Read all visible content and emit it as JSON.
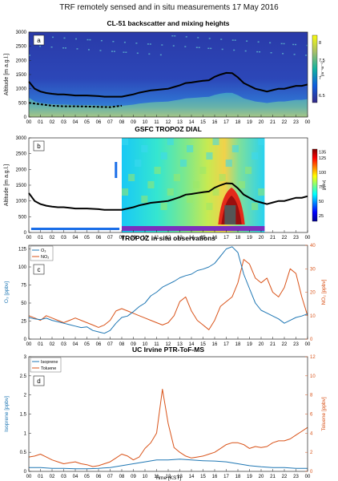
{
  "figure": {
    "title": "TRF remotely sensed and in situ measurements 17 May 2016"
  },
  "hours": [
    "00",
    "01",
    "02",
    "03",
    "04",
    "05",
    "06",
    "07",
    "08",
    "09",
    "10",
    "11",
    "12",
    "13",
    "14",
    "15",
    "16",
    "17",
    "18",
    "19",
    "20",
    "21",
    "22",
    "23",
    "00"
  ],
  "colors": {
    "ozone": "#1f77b4",
    "no2": "#d95319",
    "isoprene": "#1f77b4",
    "toluene": "#d95319",
    "mixing_height": "#000000"
  },
  "chart_data": [
    {
      "id": "a",
      "panel_letter": "a",
      "type": "heatmap",
      "title": "CL-51 backscatter and mixing heights",
      "ylabel": "Altitude [m a.g.l.]",
      "ylim": [
        0,
        3000
      ],
      "yticks": [
        0,
        500,
        1000,
        1500,
        2000,
        2500,
        3000
      ],
      "xlim": [
        0,
        24
      ],
      "colorbar": {
        "ticks": [
          8,
          7.5,
          7,
          6.5
        ],
        "label": "[m⁻¹sr⁻¹]",
        "range": [
          6.3,
          8.2
        ]
      },
      "mixing_height": {
        "x": [
          0,
          0.5,
          1,
          1.5,
          2,
          2.5,
          3,
          3.5,
          4,
          4.5,
          5,
          5.5,
          6,
          6.5,
          7,
          7.5,
          8,
          8.5,
          9,
          9.5,
          10,
          10.5,
          11,
          11.5,
          12,
          12.5,
          13,
          13.5,
          14,
          14.5,
          15,
          15.5,
          16,
          16.5,
          17,
          17.5,
          18,
          18.5,
          19,
          19.5,
          20,
          20.5,
          21,
          21.5,
          22,
          22.5,
          23,
          23.5,
          24
        ],
        "y": [
          1250,
          1000,
          900,
          850,
          820,
          800,
          800,
          780,
          760,
          760,
          760,
          750,
          740,
          720,
          720,
          720,
          720,
          760,
          800,
          860,
          900,
          940,
          960,
          980,
          1000,
          1060,
          1120,
          1200,
          1220,
          1250,
          1280,
          1300,
          1420,
          1500,
          1560,
          1550,
          1400,
          1200,
          1100,
          1000,
          950,
          900,
          950,
          1000,
          1000,
          1050,
          1100,
          1100,
          1150
        ]
      },
      "lower_layer": {
        "x": [
          0,
          1,
          2,
          3,
          4,
          5,
          6,
          7,
          8
        ],
        "y": [
          500,
          450,
          400,
          380,
          380,
          370,
          360,
          350,
          400
        ]
      }
    },
    {
      "id": "b",
      "panel_letter": "b",
      "type": "heatmap",
      "title": "GSFC TROPOZ DIAL",
      "ylabel": "Altitude [m a.g.l.]",
      "ylim": [
        0,
        3000
      ],
      "yticks": [
        0,
        500,
        1000,
        1500,
        2000,
        2500,
        3000
      ],
      "xlim": [
        0,
        24
      ],
      "data_window": [
        8,
        20.3
      ],
      "colorbar": {
        "ticks": [
          135,
          125,
          100,
          75,
          50,
          25
        ],
        "label": "[ppbv]",
        "range": [
          15,
          140
        ]
      },
      "mixing_height": {
        "x": [
          0,
          0.5,
          1,
          1.5,
          2,
          2.5,
          3,
          3.5,
          4,
          4.5,
          5,
          5.5,
          6,
          6.5,
          7,
          7.5,
          8,
          8.5,
          9,
          9.5,
          10,
          10.5,
          11,
          11.5,
          12,
          12.5,
          13,
          13.5,
          14,
          14.5,
          15,
          15.5,
          16,
          16.5,
          17,
          17.5,
          18,
          18.5,
          19,
          19.5,
          20,
          20.5,
          21,
          21.5,
          22,
          22.5,
          23,
          23.5,
          24
        ],
        "y": [
          1250,
          1000,
          900,
          850,
          820,
          800,
          800,
          780,
          760,
          760,
          760,
          750,
          740,
          720,
          720,
          720,
          720,
          760,
          800,
          860,
          900,
          940,
          960,
          980,
          1000,
          1060,
          1120,
          1200,
          1220,
          1250,
          1280,
          1300,
          1420,
          1500,
          1560,
          1550,
          1400,
          1200,
          1100,
          1000,
          950,
          900,
          950,
          1000,
          1000,
          1050,
          1100,
          1100,
          1150
        ]
      }
    },
    {
      "id": "c",
      "panel_letter": "c",
      "type": "line",
      "title": "TROPOZ in situ observations",
      "ylabel": "O₃ [ppbv]",
      "ylabel_right": "NO₂ [ppbv]",
      "ylim": [
        0,
        130
      ],
      "yticks": [
        0,
        25,
        50,
        75,
        100,
        125
      ],
      "ylim_right": [
        0,
        40
      ],
      "yticks_right": [
        0,
        10,
        20,
        30,
        40
      ],
      "xlim": [
        0,
        24
      ],
      "series": [
        {
          "name": "O₃",
          "axis": "left",
          "x": [
            0,
            0.5,
            1,
            1.5,
            2,
            2.5,
            3,
            3.5,
            4,
            4.5,
            5,
            5.5,
            6,
            6.5,
            7,
            7.5,
            8,
            8.5,
            9,
            9.5,
            10,
            10.5,
            11,
            11.5,
            12,
            12.5,
            13,
            13.5,
            14,
            14.5,
            15,
            15.5,
            16,
            16.5,
            17,
            17.5,
            18,
            18.5,
            19,
            19.5,
            20,
            20.5,
            21,
            21.5,
            22,
            22.5,
            23,
            23.5,
            24
          ],
          "y": [
            30,
            28,
            27,
            29,
            26,
            24,
            22,
            20,
            18,
            16,
            17,
            12,
            10,
            8,
            12,
            22,
            30,
            32,
            38,
            45,
            50,
            60,
            65,
            72,
            76,
            80,
            85,
            88,
            90,
            95,
            97,
            100,
            105,
            115,
            125,
            128,
            120,
            90,
            70,
            50,
            40,
            36,
            32,
            28,
            22,
            26,
            30,
            32,
            35
          ]
        },
        {
          "name": "NO₂",
          "axis": "right",
          "x": [
            0,
            0.5,
            1,
            1.5,
            2,
            2.5,
            3,
            3.5,
            4,
            4.5,
            5,
            5.5,
            6,
            6.5,
            7,
            7.5,
            8,
            8.5,
            9,
            9.5,
            10,
            10.5,
            11,
            11.5,
            12,
            12.5,
            13,
            13.5,
            14,
            14.5,
            15,
            15.5,
            16,
            16.5,
            17,
            17.5,
            18,
            18.5,
            19,
            19.5,
            20,
            20.5,
            21,
            21.5,
            22,
            22.5,
            23,
            23.5,
            24
          ],
          "y": [
            10,
            9,
            8,
            10,
            9,
            8,
            7,
            8,
            9,
            8,
            7,
            6,
            5,
            6,
            8,
            12,
            13,
            12,
            11,
            10,
            9,
            8,
            7,
            6,
            7,
            10,
            16,
            18,
            12,
            8,
            6,
            4,
            8,
            14,
            16,
            18,
            24,
            34,
            32,
            26,
            24,
            26,
            20,
            18,
            22,
            30,
            28,
            18,
            10
          ]
        }
      ]
    },
    {
      "id": "d",
      "panel_letter": "d",
      "type": "line",
      "title": "UC Irvine PTR-ToF-MS",
      "xlabel": "Time [KST]",
      "ylabel": "Isoprene [ppbv]",
      "ylabel_right": "Toluene [ppbv]",
      "ylim": [
        0,
        3
      ],
      "yticks": [
        0,
        0.5,
        1,
        1.5,
        2,
        2.5,
        3
      ],
      "ylim_right": [
        0,
        12
      ],
      "yticks_right": [
        0,
        2,
        4,
        6,
        8,
        10,
        12
      ],
      "xlim": [
        0,
        24
      ],
      "series": [
        {
          "name": "Isoprene",
          "axis": "left",
          "x": [
            0,
            1,
            2,
            3,
            4,
            5,
            6,
            7,
            8,
            9,
            10,
            11,
            12,
            13,
            14,
            15,
            16,
            17,
            18,
            19,
            20,
            21,
            22,
            23,
            24
          ],
          "y": [
            0.1,
            0.1,
            0.08,
            0.08,
            0.07,
            0.07,
            0.08,
            0.1,
            0.15,
            0.2,
            0.25,
            0.3,
            0.3,
            0.32,
            0.3,
            0.28,
            0.27,
            0.25,
            0.2,
            0.15,
            0.12,
            0.1,
            0.1,
            0.08,
            0.08
          ]
        },
        {
          "name": "Toluene",
          "axis": "right",
          "x": [
            0,
            0.5,
            1,
            1.5,
            2,
            2.5,
            3,
            3.5,
            4,
            4.5,
            5,
            5.5,
            6,
            6.5,
            7,
            7.5,
            8,
            8.5,
            9,
            9.5,
            10,
            10.5,
            11,
            11.5,
            12,
            12.5,
            13,
            13.5,
            14,
            14.5,
            15,
            15.5,
            16,
            16.5,
            17,
            17.5,
            18,
            18.5,
            19,
            19.5,
            20,
            20.5,
            21,
            21.5,
            22,
            22.5,
            23,
            23.5,
            24
          ],
          "y": [
            1.5,
            1.6,
            1.8,
            1.5,
            1.2,
            1.0,
            0.8,
            0.9,
            1.0,
            0.8,
            0.7,
            0.5,
            0.6,
            0.8,
            1.0,
            1.4,
            1.8,
            1.6,
            1.2,
            1.5,
            2.4,
            3.0,
            4.0,
            8.6,
            5.0,
            2.5,
            2.0,
            1.6,
            1.4,
            1.5,
            1.6,
            1.8,
            2.0,
            2.4,
            2.8,
            3.0,
            3.0,
            2.8,
            2.4,
            2.6,
            2.5,
            2.6,
            3.0,
            3.2,
            3.2,
            3.4,
            3.8,
            4.2,
            4.6
          ]
        }
      ]
    }
  ]
}
